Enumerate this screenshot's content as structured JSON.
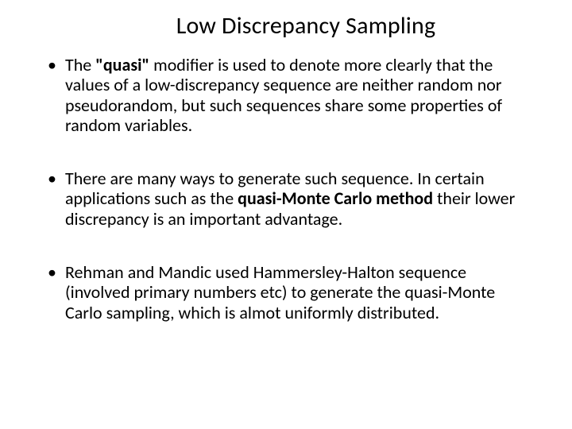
{
  "slide": {
    "title": "Low Discrepancy Sampling",
    "bullets": [
      {
        "pre": "The ",
        "bold1": "\"quasi\"",
        "post": " modifier is used to denote more clearly that the values of a low-discrepancy sequence are neither random nor pseudorandom, but such sequences share some properties of random variables."
      },
      {
        "pre": "There are many ways to generate such sequence.   In certain applications such as the ",
        "bold1": "quasi-Monte Carlo method",
        "post": " their lower discrepancy is an important advantage."
      },
      {
        "pre": "Rehman and Mandic used Hammersley-Halton sequence (involved primary numbers etc) to generate the quasi-Monte Carlo sampling, which is almot uniformly distributed.",
        "bold1": "",
        "post": ""
      }
    ]
  },
  "style": {
    "background_color": "#ffffff",
    "text_color": "#000000",
    "title_fontsize": 30,
    "body_fontsize": 22,
    "font_family": "Calibri",
    "slide_width": 720,
    "slide_height": 540
  }
}
